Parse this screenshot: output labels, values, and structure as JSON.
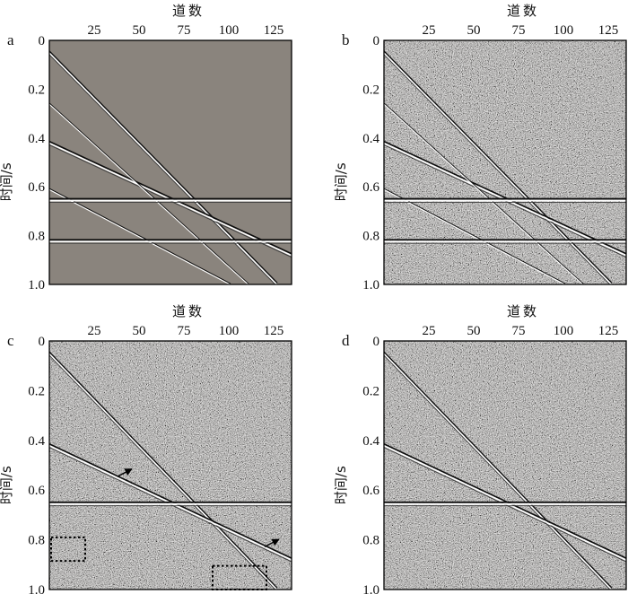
{
  "chart_data": [
    {
      "type": "seismic-section",
      "panel": "a",
      "xlabel": "道数",
      "ylabel": "时间/s",
      "xlim": [
        0,
        135
      ],
      "ylim": [
        0,
        1.0
      ],
      "xticks": [
        "25",
        "50",
        "75",
        "100",
        "125"
      ],
      "yticks": [
        "0",
        "0.2",
        "0.4",
        "0.6",
        "0.8",
        "1.0"
      ],
      "noise": "none",
      "events": [
        {
          "kind": "dip",
          "t0": 0.05,
          "t1": 1.0,
          "x1": 127
        },
        {
          "kind": "dip",
          "t0": 0.42,
          "t1": 0.88,
          "x1": 135
        },
        {
          "kind": "dip",
          "t0": 0.26,
          "t1": 1.0,
          "x1": 111
        },
        {
          "kind": "dip",
          "t0": 0.61,
          "t1": 1.0,
          "x1": 101
        },
        {
          "kind": "flat",
          "t0": 0.655
        },
        {
          "kind": "flat",
          "t0": 0.823
        }
      ]
    },
    {
      "type": "seismic-section",
      "panel": "b",
      "xlabel": "道数",
      "ylabel": "时间/s",
      "xlim": [
        0,
        135
      ],
      "ylim": [
        0,
        1.0
      ],
      "xticks": [
        "25",
        "50",
        "75",
        "100",
        "125"
      ],
      "yticks": [
        "0",
        "0.2",
        "0.4",
        "0.6",
        "0.8",
        "1.0"
      ],
      "noise": "random",
      "events": [
        {
          "kind": "dip",
          "t0": 0.05,
          "t1": 1.0,
          "x1": 127
        },
        {
          "kind": "dip",
          "t0": 0.42,
          "t1": 0.88,
          "x1": 135
        },
        {
          "kind": "dip",
          "t0": 0.26,
          "t1": 1.0,
          "x1": 111
        },
        {
          "kind": "dip",
          "t0": 0.61,
          "t1": 1.0,
          "x1": 101
        },
        {
          "kind": "flat",
          "t0": 0.655
        },
        {
          "kind": "flat",
          "t0": 0.823
        }
      ]
    },
    {
      "type": "seismic-section",
      "panel": "c",
      "xlabel": "道数",
      "ylabel": "时间/s",
      "xlim": [
        0,
        135
      ],
      "ylim": [
        0,
        1.0
      ],
      "xticks": [
        "25",
        "50",
        "75",
        "100",
        "125"
      ],
      "yticks": [
        "0",
        "0.2",
        "0.4",
        "0.6",
        "0.8",
        "1.0"
      ],
      "noise": "random",
      "events": [
        {
          "kind": "dip",
          "t0": 0.05,
          "t1": 1.0,
          "x1": 127
        },
        {
          "kind": "dip",
          "t0": 0.42,
          "t1": 0.88,
          "x1": 135
        },
        {
          "kind": "flat",
          "t0": 0.655
        }
      ],
      "arrows": [
        {
          "x": 38,
          "t": 0.545,
          "dx": 8,
          "dt": -0.03
        },
        {
          "x": 120,
          "t": 0.828,
          "dx": 8,
          "dt": -0.03
        }
      ],
      "boxes": [
        {
          "x0": 1,
          "x1": 20,
          "t0": 0.79,
          "t1": 0.885
        },
        {
          "x0": 91,
          "x1": 121,
          "t0": 0.905,
          "t1": 1.0
        }
      ]
    },
    {
      "type": "seismic-section",
      "panel": "d",
      "xlabel": "道数",
      "ylabel": "时间/s",
      "xlim": [
        0,
        135
      ],
      "ylim": [
        0,
        1.0
      ],
      "xticks": [
        "25",
        "50",
        "75",
        "100",
        "125"
      ],
      "yticks": [
        "0",
        "0.2",
        "0.4",
        "0.6",
        "0.8",
        "1.0"
      ],
      "noise": "random",
      "events": [
        {
          "kind": "dip",
          "t0": 0.05,
          "t1": 1.0,
          "x1": 127
        },
        {
          "kind": "dip",
          "t0": 0.42,
          "t1": 0.88,
          "x1": 135
        },
        {
          "kind": "flat",
          "t0": 0.655
        }
      ]
    }
  ]
}
